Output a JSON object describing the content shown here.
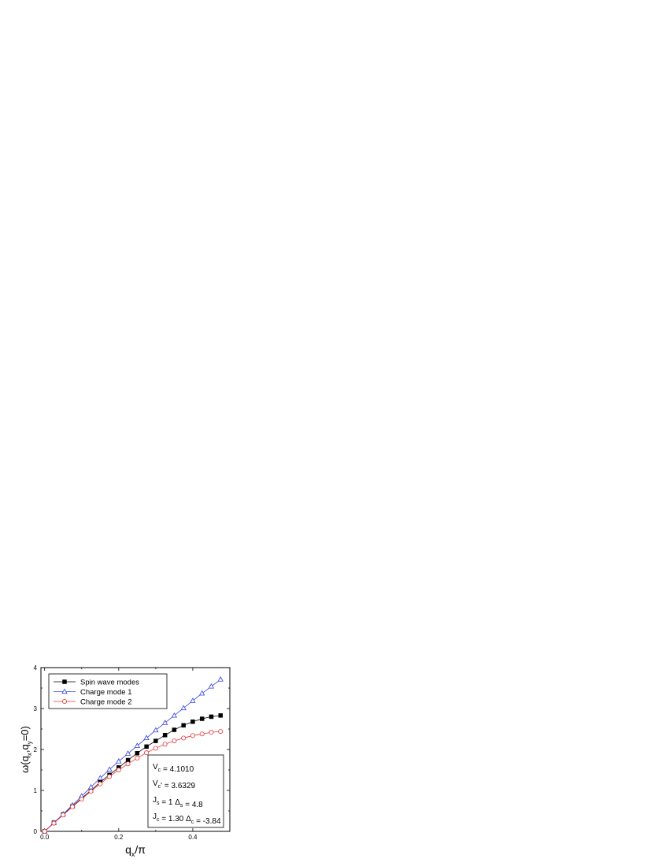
{
  "chart_data": {
    "type": "line",
    "xlabel": {
      "main": "q",
      "sub": "x",
      "rest": "/π"
    },
    "ylabel": {
      "parts": [
        "ω(q",
        "x",
        ",q",
        "y",
        "=0)"
      ]
    },
    "xlim": [
      -0.01,
      0.5
    ],
    "ylim": [
      0,
      4
    ],
    "xticks": [
      0.0,
      0.2,
      0.4
    ],
    "xtick_labels": [
      "0.0",
      "0.2",
      "0.4"
    ],
    "xminor": [
      0.1,
      0.3
    ],
    "yticks": [
      0,
      1,
      2,
      3,
      4
    ],
    "ytick_labels": [
      "0",
      "1",
      "2",
      "3",
      "4"
    ],
    "yminor": [
      0.5,
      1.5,
      2.5,
      3.5
    ],
    "grid": false,
    "legend_position": "top-left",
    "x": [
      0.0,
      0.025,
      0.05,
      0.075,
      0.1,
      0.125,
      0.15,
      0.175,
      0.2,
      0.225,
      0.25,
      0.275,
      0.3,
      0.325,
      0.35,
      0.375,
      0.4,
      0.425,
      0.45,
      0.475
    ],
    "series": [
      {
        "name": "Spin wave modes",
        "color": "#000000",
        "marker": "filled-square",
        "values": [
          0.0,
          0.21,
          0.41,
          0.61,
          0.81,
          1.0,
          1.2,
          1.38,
          1.56,
          1.74,
          1.91,
          2.07,
          2.21,
          2.35,
          2.48,
          2.59,
          2.68,
          2.75,
          2.8,
          2.83
        ]
      },
      {
        "name": "Charge mode 1",
        "color": "#3344dd",
        "marker": "open-triangle",
        "values": [
          0.0,
          0.21,
          0.42,
          0.64,
          0.86,
          1.08,
          1.3,
          1.51,
          1.71,
          1.9,
          2.09,
          2.28,
          2.47,
          2.65,
          2.83,
          3.01,
          3.19,
          3.37,
          3.54,
          3.71
        ]
      },
      {
        "name": "Charge mode 2",
        "color": "#ee3333",
        "marker": "open-circle",
        "values": [
          0.0,
          0.2,
          0.4,
          0.6,
          0.79,
          0.98,
          1.16,
          1.34,
          1.5,
          1.65,
          1.79,
          1.92,
          2.03,
          2.13,
          2.21,
          2.28,
          2.34,
          2.38,
          2.42,
          2.44
        ]
      }
    ],
    "parameters": [
      {
        "parts": [
          [
            "V",
            ""
          ],
          [
            "c",
            "sub"
          ],
          [
            " = 4.1010",
            ""
          ]
        ]
      },
      {
        "parts": [
          [
            "V",
            ""
          ],
          [
            "c",
            "sub"
          ],
          [
            "' = 3.6329",
            ""
          ]
        ]
      },
      {
        "parts": [
          [
            "J",
            ""
          ],
          [
            "s",
            "sub"
          ],
          [
            " = 1   Δ",
            ""
          ],
          [
            "s",
            "sub"
          ],
          [
            " = 4.8",
            ""
          ]
        ]
      },
      {
        "parts": [
          [
            "J",
            ""
          ],
          [
            "c",
            "sub"
          ],
          [
            " = 1.30  Δ",
            ""
          ],
          [
            "c",
            "sub"
          ],
          [
            " = -3.84",
            ""
          ]
        ]
      }
    ]
  }
}
